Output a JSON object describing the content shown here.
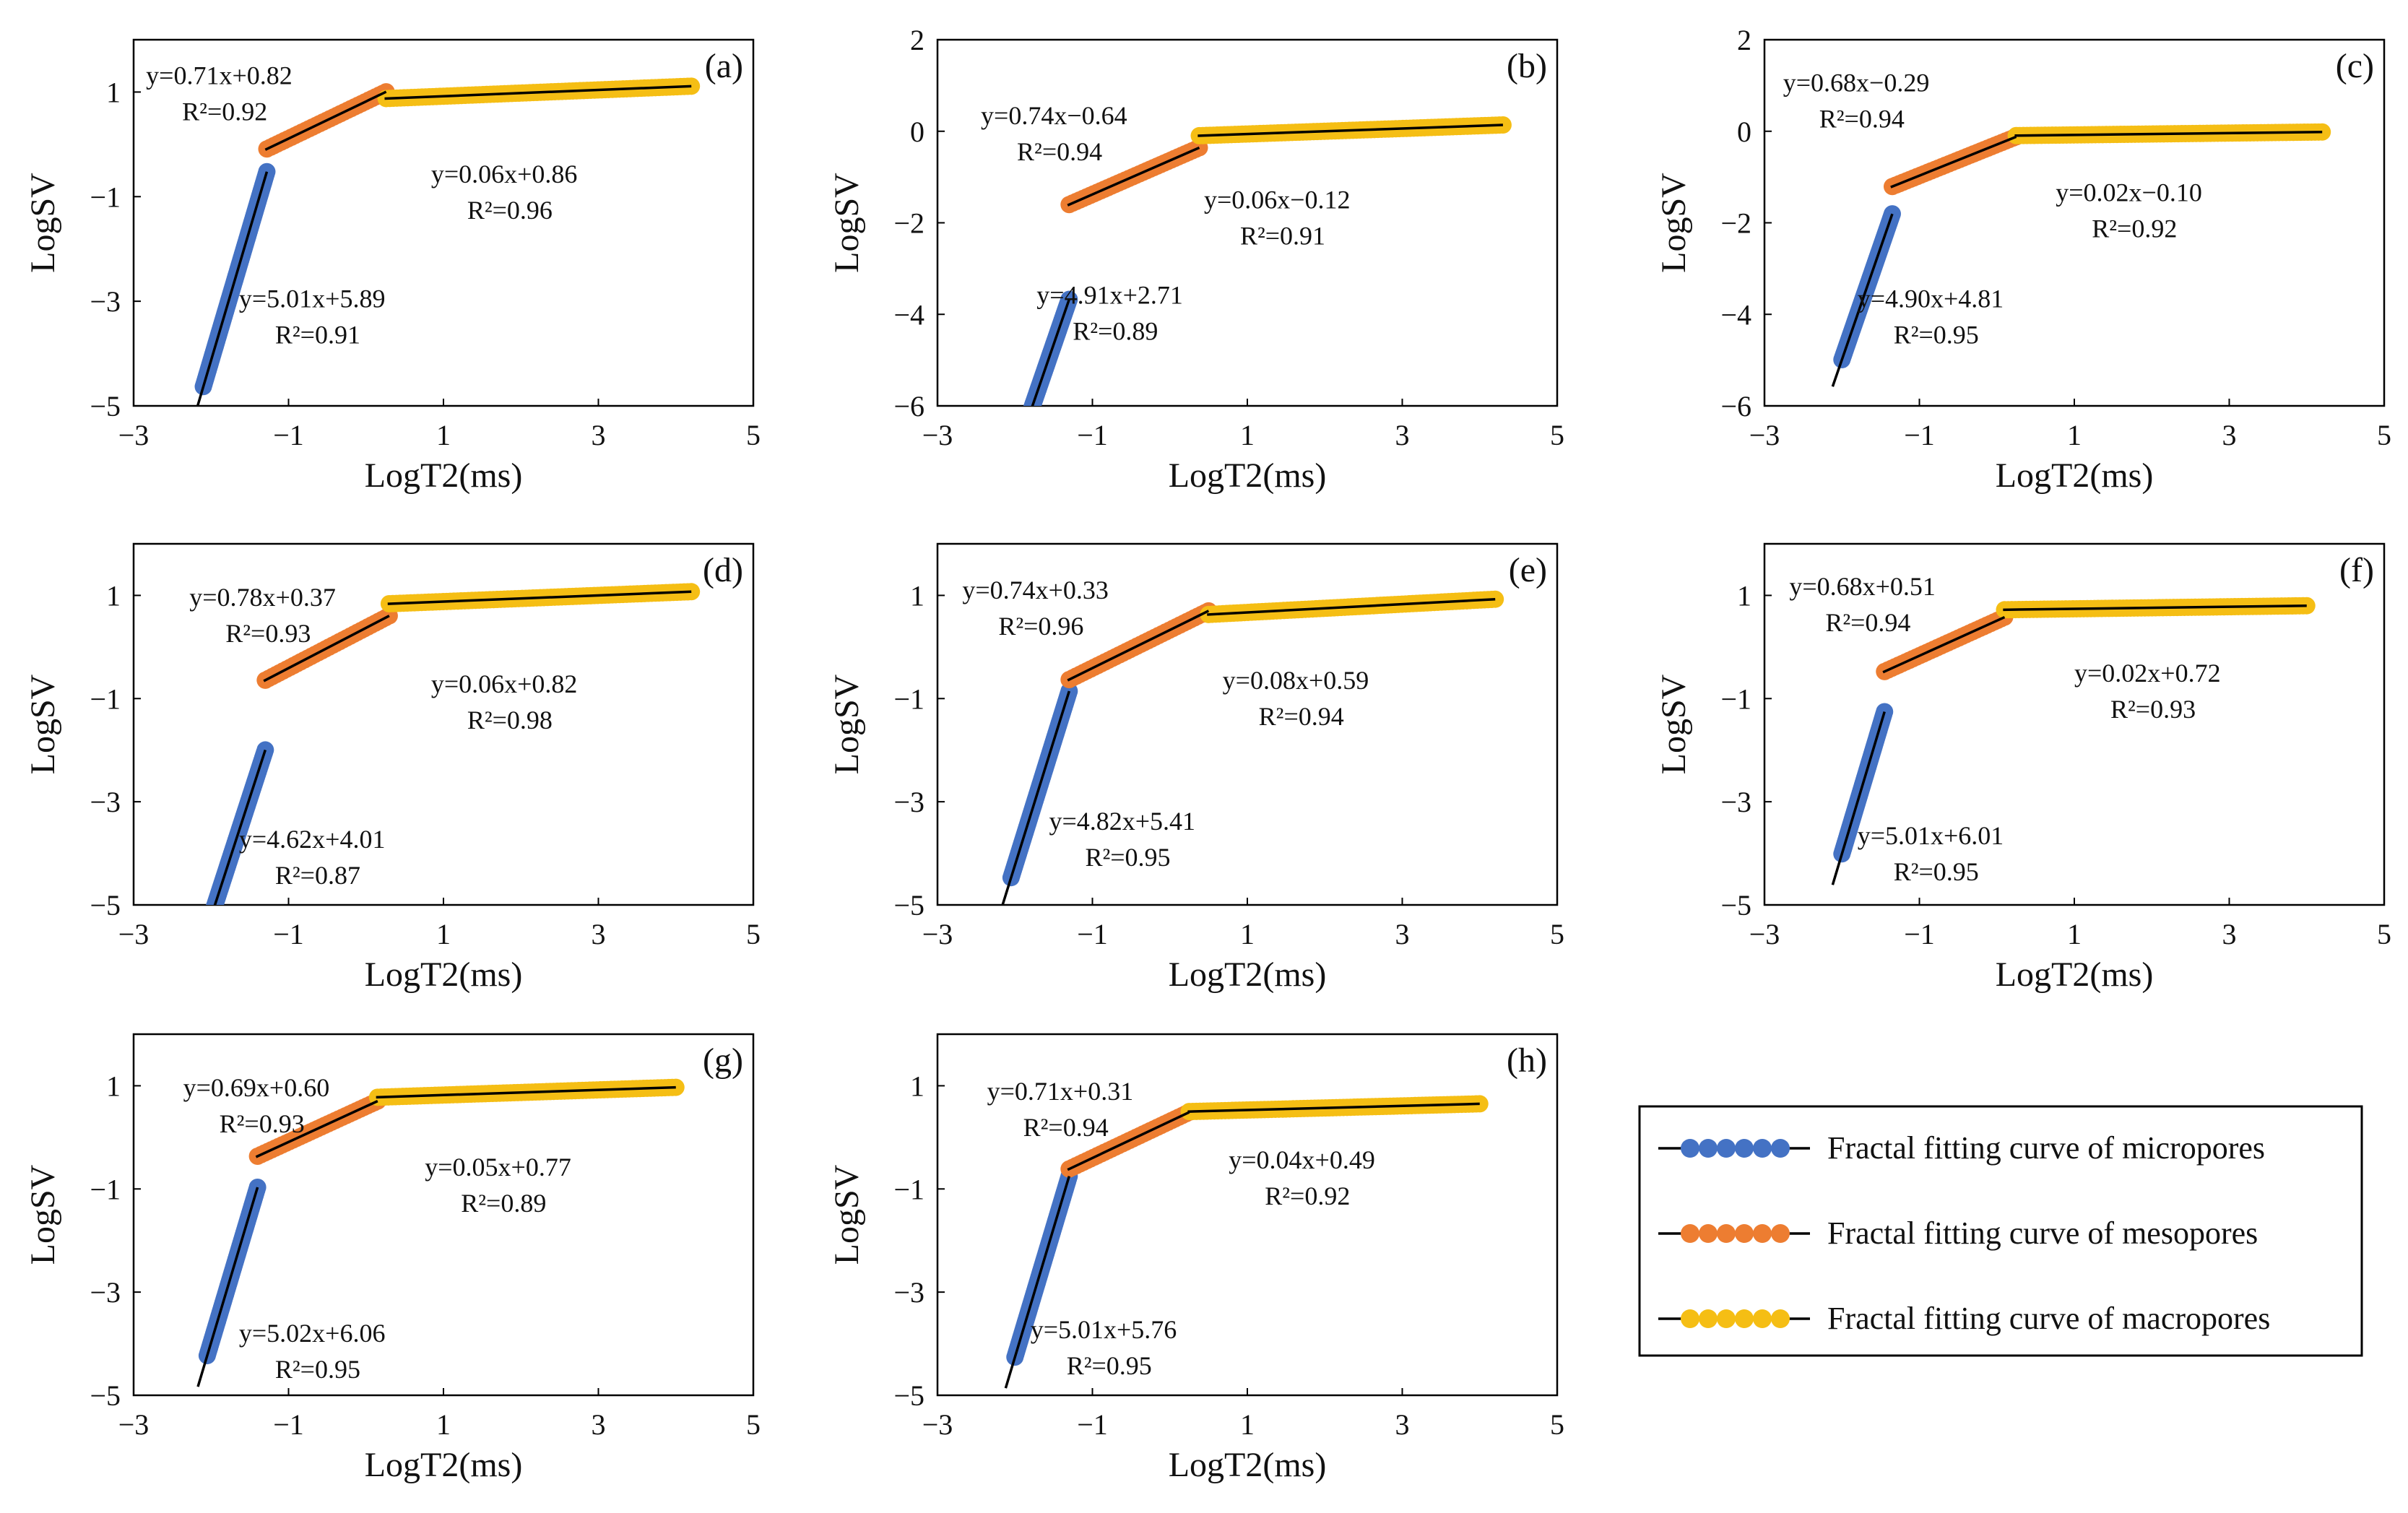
{
  "colors": {
    "micro": "#4472C4",
    "meso": "#ED7D31",
    "macro": "#F5BE14",
    "fit": "#000000",
    "axis": "#000000"
  },
  "legend": {
    "items": [
      {
        "label": "Fractal fitting curve of micropores",
        "color": "#4472C4"
      },
      {
        "label": "Fractal fitting curve of mesopores",
        "color": "#ED7D31"
      },
      {
        "label": "Fractal fitting curve of macropores",
        "color": "#F5BE14"
      }
    ]
  },
  "chart_data": [
    {
      "panel": "(a)",
      "type": "scatter",
      "xlabel": "LogT2(ms)",
      "ylabel": "LogSV",
      "xlim": [
        -3,
        5
      ],
      "ylim": [
        -5,
        2
      ],
      "xticks": [
        "-3",
        "-1",
        "1",
        "3",
        "5"
      ],
      "yticks": [
        "-5",
        "-3",
        "-1",
        "1"
      ],
      "segments": [
        {
          "name": "micropores",
          "x_range": [
            -2.1,
            -1.28
          ],
          "fit": {
            "slope": 5.01,
            "intercept": 5.89
          },
          "equation": "y=5.01x+5.89",
          "r2": "R²=0.91"
        },
        {
          "name": "mesopores",
          "x_range": [
            -1.28,
            0.26
          ],
          "fit": {
            "slope": 0.71,
            "intercept": 0.82
          },
          "equation": "y=0.71x+0.82",
          "r2": "R²=0.92"
        },
        {
          "name": "macropores",
          "x_range": [
            0.26,
            4.2
          ],
          "fit": {
            "slope": 0.06,
            "intercept": 0.86
          },
          "equation": "y=0.06x+0.86",
          "r2": "R²=0.96"
        }
      ]
    },
    {
      "panel": "(b)",
      "type": "scatter",
      "xlabel": "LogT2(ms)",
      "ylabel": "LogSV",
      "xlim": [
        -3,
        5
      ],
      "ylim": [
        -6,
        2
      ],
      "xticks": [
        "-3",
        "-1",
        "1",
        "3",
        "5"
      ],
      "yticks": [
        "-6",
        "-4",
        "-2",
        "0",
        "2"
      ],
      "segments": [
        {
          "name": "micropores",
          "x_range": [
            -2.1,
            -1.3
          ],
          "fit": {
            "slope": 4.91,
            "intercept": 2.71
          },
          "equation": "y=4.91x+2.71",
          "r2": "R²=0.89"
        },
        {
          "name": "mesopores",
          "x_range": [
            -1.3,
            0.38
          ],
          "fit": {
            "slope": 0.74,
            "intercept": -0.64
          },
          "equation": "y=0.74x−0.64",
          "r2": "R²=0.94"
        },
        {
          "name": "macropores",
          "x_range": [
            0.38,
            4.3
          ],
          "fit": {
            "slope": 0.06,
            "intercept": -0.12
          },
          "equation": "y=0.06x−0.12",
          "r2": "R²=0.91"
        }
      ]
    },
    {
      "panel": "(c)",
      "type": "scatter",
      "xlabel": "LogT2(ms)",
      "ylabel": "LogSV",
      "xlim": [
        -3,
        5
      ],
      "ylim": [
        -6,
        2
      ],
      "xticks": [
        "-3",
        "-1",
        "1",
        "3",
        "5"
      ],
      "yticks": [
        "-6",
        "-4",
        "-2",
        "0",
        "2"
      ],
      "segments": [
        {
          "name": "micropores",
          "x_range": [
            -2.0,
            -1.35
          ],
          "fit": {
            "slope": 4.9,
            "intercept": 4.81
          },
          "equation": "y=4.90x+4.81",
          "r2": "R²=0.95"
        },
        {
          "name": "mesopores",
          "x_range": [
            -1.35,
            0.25
          ],
          "fit": {
            "slope": 0.68,
            "intercept": -0.29
          },
          "equation": "y=0.68x−0.29",
          "r2": "R²=0.94"
        },
        {
          "name": "macropores",
          "x_range": [
            0.25,
            4.2
          ],
          "fit": {
            "slope": 0.02,
            "intercept": -0.1
          },
          "equation": "y=0.02x−0.10",
          "r2": "R²=0.92"
        }
      ]
    },
    {
      "panel": "(d)",
      "type": "scatter",
      "xlabel": "LogT2(ms)",
      "ylabel": "LogSV",
      "xlim": [
        -3,
        5
      ],
      "ylim": [
        -5,
        2
      ],
      "xticks": [
        "-3",
        "-1",
        "1",
        "3",
        "5"
      ],
      "yticks": [
        "-5",
        "-3",
        "-1",
        "1"
      ],
      "segments": [
        {
          "name": "micropores",
          "x_range": [
            -2.05,
            -1.3
          ],
          "fit": {
            "slope": 4.62,
            "intercept": 4.01
          },
          "equation": "y=4.62x+4.01",
          "r2": "R²=0.87"
        },
        {
          "name": "mesopores",
          "x_range": [
            -1.3,
            0.3
          ],
          "fit": {
            "slope": 0.78,
            "intercept": 0.37
          },
          "equation": "y=0.78x+0.37",
          "r2": "R²=0.93"
        },
        {
          "name": "macropores",
          "x_range": [
            0.3,
            4.2
          ],
          "fit": {
            "slope": 0.06,
            "intercept": 0.82
          },
          "equation": "y=0.06x+0.82",
          "r2": "R²=0.98"
        }
      ]
    },
    {
      "panel": "(e)",
      "type": "scatter",
      "xlabel": "LogT2(ms)",
      "ylabel": "LogSV",
      "xlim": [
        -3,
        5
      ],
      "ylim": [
        -5,
        2
      ],
      "xticks": [
        "-3",
        "-1",
        "1",
        "3",
        "5"
      ],
      "yticks": [
        "-5",
        "-3",
        "-1",
        "1"
      ],
      "segments": [
        {
          "name": "micropores",
          "x_range": [
            -2.05,
            -1.3
          ],
          "fit": {
            "slope": 4.82,
            "intercept": 5.41
          },
          "equation": "y=4.82x+5.41",
          "r2": "R²=0.95"
        },
        {
          "name": "mesopores",
          "x_range": [
            -1.3,
            0.5
          ],
          "fit": {
            "slope": 0.74,
            "intercept": 0.33
          },
          "equation": "y=0.74x+0.33",
          "r2": "R²=0.96"
        },
        {
          "name": "macropores",
          "x_range": [
            0.5,
            4.2
          ],
          "fit": {
            "slope": 0.08,
            "intercept": 0.59
          },
          "equation": "y=0.08x+0.59",
          "r2": "R²=0.94"
        }
      ]
    },
    {
      "panel": "(f)",
      "type": "scatter",
      "xlabel": "LogT2(ms)",
      "ylabel": "LogSV",
      "xlim": [
        -3,
        5
      ],
      "ylim": [
        -5,
        2
      ],
      "xticks": [
        "-3",
        "-1",
        "1",
        "3",
        "5"
      ],
      "yticks": [
        "-5",
        "-3",
        "-1",
        "1"
      ],
      "segments": [
        {
          "name": "micropores",
          "x_range": [
            -2.0,
            -1.45
          ],
          "fit": {
            "slope": 5.01,
            "intercept": 6.01
          },
          "equation": "y=5.01x+6.01",
          "r2": "R²=0.95"
        },
        {
          "name": "mesopores",
          "x_range": [
            -1.45,
            0.1
          ],
          "fit": {
            "slope": 0.68,
            "intercept": 0.51
          },
          "equation": "y=0.68x+0.51",
          "r2": "R²=0.94"
        },
        {
          "name": "macropores",
          "x_range": [
            0.1,
            4.0
          ],
          "fit": {
            "slope": 0.02,
            "intercept": 0.72
          },
          "equation": "y=0.02x+0.72",
          "r2": "R²=0.93"
        }
      ]
    },
    {
      "panel": "(g)",
      "type": "scatter",
      "xlabel": "LogT2(ms)",
      "ylabel": "LogSV",
      "xlim": [
        -3,
        5
      ],
      "ylim": [
        -5,
        2
      ],
      "xticks": [
        "-3",
        "-1",
        "1",
        "3",
        "5"
      ],
      "yticks": [
        "-5",
        "-3",
        "-1",
        "1"
      ],
      "segments": [
        {
          "name": "micropores",
          "x_range": [
            -2.05,
            -1.4
          ],
          "fit": {
            "slope": 5.02,
            "intercept": 6.06
          },
          "equation": "y=5.02x+6.06",
          "r2": "R²=0.95"
        },
        {
          "name": "mesopores",
          "x_range": [
            -1.4,
            0.15
          ],
          "fit": {
            "slope": 0.69,
            "intercept": 0.6
          },
          "equation": "y=0.69x+0.60",
          "r2": "R²=0.93"
        },
        {
          "name": "macropores",
          "x_range": [
            0.15,
            4.0
          ],
          "fit": {
            "slope": 0.05,
            "intercept": 0.77
          },
          "equation": "y=0.05x+0.77",
          "r2": "R²=0.89"
        }
      ]
    },
    {
      "panel": "(h)",
      "type": "scatter",
      "xlabel": "LogT2(ms)",
      "ylabel": "LogSV",
      "xlim": [
        -3,
        5
      ],
      "ylim": [
        -5,
        2
      ],
      "xticks": [
        "-3",
        "-1",
        "1",
        "3",
        "5"
      ],
      "yticks": [
        "-5",
        "-3",
        "-1",
        "1"
      ],
      "segments": [
        {
          "name": "micropores",
          "x_range": [
            -2.0,
            -1.3
          ],
          "fit": {
            "slope": 5.01,
            "intercept": 5.76
          },
          "equation": "y=5.01x+5.76",
          "r2": "R²=0.95"
        },
        {
          "name": "mesopores",
          "x_range": [
            -1.3,
            0.25
          ],
          "fit": {
            "slope": 0.71,
            "intercept": 0.31
          },
          "equation": "y=0.71x+0.31",
          "r2": "R²=0.94"
        },
        {
          "name": "macropores",
          "x_range": [
            0.25,
            4.0
          ],
          "fit": {
            "slope": 0.04,
            "intercept": 0.49
          },
          "equation": "y=0.04x+0.49",
          "r2": "R²=0.92"
        }
      ]
    }
  ]
}
